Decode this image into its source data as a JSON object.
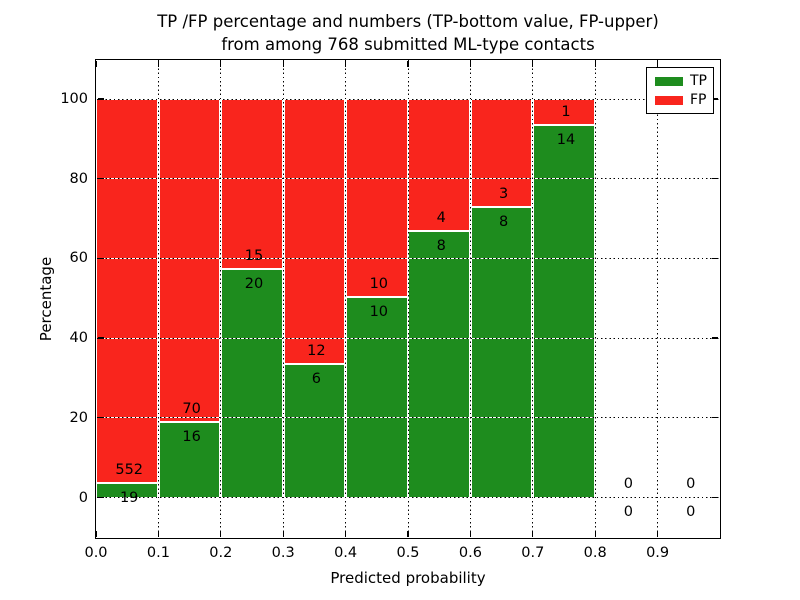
{
  "chart_data": {
    "type": "bar",
    "stacked": true,
    "title_line1": "TP /FP percentage and numbers (TP-bottom value, FP-upper)",
    "title_line2": "from among 768 submitted ML-type contacts",
    "xlabel": "Predicted probability",
    "ylabel": "Percentage",
    "x_ticks": [
      "0.0",
      "0.1",
      "0.2",
      "0.3",
      "0.4",
      "0.5",
      "0.6",
      "0.7",
      "0.8",
      "0.9"
    ],
    "y_ticks": [
      "0",
      "20",
      "40",
      "60",
      "80",
      "100"
    ],
    "y_tick_values": [
      0,
      20,
      40,
      60,
      80,
      100
    ],
    "xlim": [
      0.0,
      1.0
    ],
    "ylim": [
      -10.5,
      110
    ],
    "grid": true,
    "legend_position": "upper right",
    "colors": {
      "tp": "#1E8C1E",
      "fp": "#F9251D"
    },
    "legend": [
      {
        "label": "TP",
        "color": "#1E8C1E"
      },
      {
        "label": "FP",
        "color": "#F9251D"
      }
    ],
    "bins": [
      {
        "x0": 0.0,
        "x1": 0.1,
        "tp": 19,
        "fp": 552,
        "tp_pct": 3.33,
        "fp_pct": 96.67
      },
      {
        "x0": 0.1,
        "x1": 0.2,
        "tp": 16,
        "fp": 70,
        "tp_pct": 18.6,
        "fp_pct": 81.4
      },
      {
        "x0": 0.2,
        "x1": 0.3,
        "tp": 20,
        "fp": 15,
        "tp_pct": 57.14,
        "fp_pct": 42.86
      },
      {
        "x0": 0.3,
        "x1": 0.4,
        "tp": 6,
        "fp": 12,
        "tp_pct": 33.33,
        "fp_pct": 66.67
      },
      {
        "x0": 0.4,
        "x1": 0.5,
        "tp": 10,
        "fp": 10,
        "tp_pct": 50.0,
        "fp_pct": 50.0
      },
      {
        "x0": 0.5,
        "x1": 0.6,
        "tp": 8,
        "fp": 4,
        "tp_pct": 66.67,
        "fp_pct": 33.33
      },
      {
        "x0": 0.6,
        "x1": 0.7,
        "tp": 8,
        "fp": 3,
        "tp_pct": 72.73,
        "fp_pct": 27.27
      },
      {
        "x0": 0.7,
        "x1": 0.8,
        "tp": 14,
        "fp": 1,
        "tp_pct": 93.33,
        "fp_pct": 6.67
      },
      {
        "x0": 0.8,
        "x1": 0.9,
        "tp": 0,
        "fp": 0,
        "tp_pct": 0,
        "fp_pct": 0
      },
      {
        "x0": 0.9,
        "x1": 1.0,
        "tp": 0,
        "fp": 0,
        "tp_pct": 0,
        "fp_pct": 0
      }
    ]
  }
}
